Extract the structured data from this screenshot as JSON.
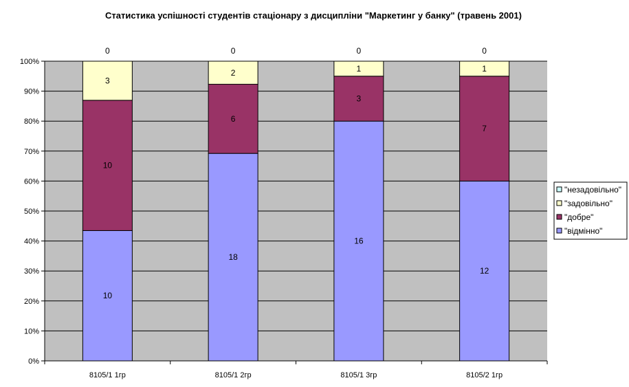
{
  "chart_data": {
    "type": "bar",
    "stacked": "percent",
    "title": "Статистика успішності студентів стаціонару з дисципліни \"Маркетинг у банку\" (травень 2001)",
    "xlabel": "",
    "ylabel": "",
    "ylim": [
      0,
      100
    ],
    "yticks": [
      "0%",
      "10%",
      "20%",
      "30%",
      "40%",
      "50%",
      "60%",
      "70%",
      "80%",
      "90%",
      "100%"
    ],
    "categories": [
      "8105/1 1гр",
      "8105/1 2гр",
      "8105/1 3гр",
      "8105/2 1гр"
    ],
    "series": [
      {
        "name": "\"відмінно\"",
        "color": "#9999ff",
        "values": [
          10,
          18,
          16,
          12
        ]
      },
      {
        "name": "\"добре\"",
        "color": "#993366",
        "values": [
          10,
          6,
          3,
          7
        ]
      },
      {
        "name": "\"задовільно\"",
        "color": "#ffffcc",
        "values": [
          3,
          2,
          1,
          1
        ]
      },
      {
        "name": "\"незадовільно\"",
        "color": "#ccffff",
        "values": [
          0,
          0,
          0,
          0
        ]
      }
    ],
    "legend_series_order": [
      3,
      2,
      1,
      0
    ],
    "plot_background": "#c0c0c0",
    "grid": true,
    "legend": "right"
  }
}
